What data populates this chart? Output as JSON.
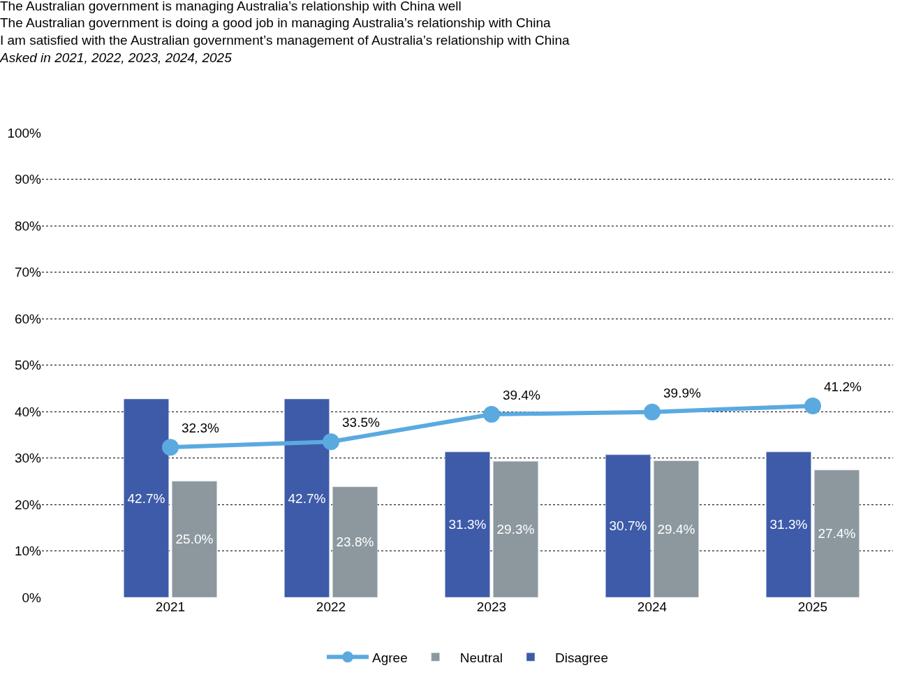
{
  "chart_data": {
    "type": "bar",
    "title": "The Australian government is managing Australia’s relationship with China well\nThe Australian government is doing a good job in managing Australia’s relationship with China\nI am satisfied with the Australian government’s management of Australia’s relationship with China",
    "subtitle": "Asked in 2021, 2022, 2023, 2024, 2025",
    "categories": [
      "2021",
      "2022",
      "2023",
      "2024",
      "2025"
    ],
    "series": [
      {
        "name": "Agree",
        "type": "line",
        "color": "#5aaae0",
        "values": [
          32.3,
          33.5,
          39.4,
          39.9,
          41.2
        ],
        "value_labels": [
          "32.3%",
          "33.5%",
          "39.4%",
          "39.9%",
          "41.2%"
        ]
      },
      {
        "name": "Neutral",
        "color": "#8c989e",
        "values": [
          25.0,
          23.8,
          29.3,
          29.4,
          27.4
        ],
        "value_labels": [
          "25.0%",
          "23.8%",
          "29.3%",
          "29.4%",
          "27.4%"
        ]
      },
      {
        "name": "Disagree",
        "color": "#3d5ba8",
        "values": [
          42.7,
          42.7,
          31.3,
          30.7,
          31.3
        ],
        "value_labels": [
          "42.7%",
          "42.7%",
          "31.3%",
          "30.7%",
          "31.3%"
        ]
      }
    ],
    "ylim": [
      0,
      100
    ],
    "yticks": [
      {
        "value": 0,
        "label": "0%"
      },
      {
        "value": 10,
        "label": "10%"
      },
      {
        "value": 20,
        "label": "20%"
      },
      {
        "value": 30,
        "label": "30%"
      },
      {
        "value": 40,
        "label": "40%"
      },
      {
        "value": 50,
        "label": "50%"
      },
      {
        "value": 60,
        "label": "60%"
      },
      {
        "value": 70,
        "label": "70%"
      },
      {
        "value": 80,
        "label": "80%"
      },
      {
        "value": 90,
        "label": "90%"
      },
      {
        "value": 100,
        "label": "100%"
      }
    ],
    "grid": "y",
    "legend": "bottom",
    "marker": "circle"
  }
}
